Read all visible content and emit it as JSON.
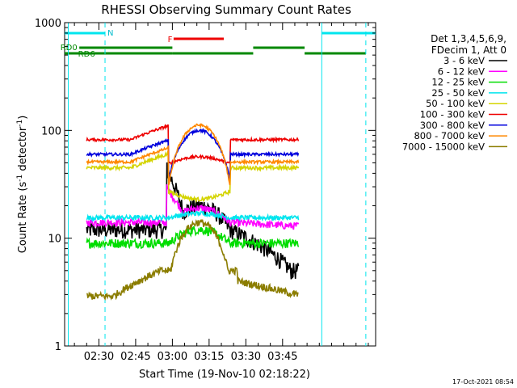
{
  "chart_data": {
    "type": "line",
    "title": "RHESSI Observing Summary Count Rates",
    "xlabel": "Start Time (19-Nov-10 02:18:22)",
    "ylabel_main": "Count Rate (s",
    "ylabel_sup1": "-1",
    "ylabel_mid": " detector",
    "ylabel_sup2": "-1",
    "ylabel_end": ")",
    "footer": "17-Oct-2021 08:54",
    "yscale": "log",
    "ylim": [
      1,
      1000
    ],
    "xlim_minutes": [
      -2,
      125
    ],
    "x_ticks": [
      {
        "t": 12,
        "label": "02:30"
      },
      {
        "t": 27,
        "label": "02:45"
      },
      {
        "t": 42,
        "label": "03:00"
      },
      {
        "t": 57,
        "label": "03:15"
      },
      {
        "t": 72,
        "label": "03:30"
      },
      {
        "t": 87,
        "label": "03:45"
      }
    ],
    "y_ticks": [
      {
        "v": 1,
        "label": "1"
      },
      {
        "v": 10,
        "label": "10"
      },
      {
        "v": 100,
        "label": "100"
      },
      {
        "v": 1000,
        "label": "1000"
      }
    ],
    "legend": {
      "header1": "Det 1,3,4,5,6,9,",
      "header2": "FDecim 1, Att 0",
      "position": "right"
    },
    "series": [
      {
        "name": "3 - 6 keV",
        "color": "#000000",
        "kind": "flat",
        "base": 12,
        "peak": 20,
        "spike": 45,
        "noise": 0.18,
        "tail": 5
      },
      {
        "name": "6 - 12 keV",
        "color": "#ff00ff",
        "kind": "flat",
        "base": 14,
        "peak": 19,
        "spike": 30,
        "noise": 0.08,
        "tail": 13
      },
      {
        "name": "12 - 25 keV",
        "color": "#00dd00",
        "kind": "dome",
        "base": 9,
        "peak": 12,
        "spike": 0,
        "noise": 0.1,
        "tail": 9
      },
      {
        "name": "25 - 50 keV",
        "color": "#00e5ee",
        "kind": "flat",
        "base": 15.5,
        "peak": 17,
        "spike": 0,
        "noise": 0.05,
        "tail": 15.5
      },
      {
        "name": "50 - 100 keV",
        "color": "#d4d400",
        "kind": "rise",
        "base": 45,
        "peak": 23,
        "spike": 0,
        "noise": 0.04,
        "tail": 45
      },
      {
        "name": "100 - 300 keV",
        "color": "#ee0000",
        "kind": "rise",
        "base": 82,
        "peak": 57,
        "spike": 0,
        "noise": 0.03,
        "tail": 82
      },
      {
        "name": "300 - 800 keV",
        "color": "#0000dd",
        "kind": "rise",
        "base": 60,
        "peak": 100,
        "spike": 0,
        "noise": 0.03,
        "tail": 60
      },
      {
        "name": "800 - 7000 keV",
        "color": "#ff8800",
        "kind": "rise",
        "base": 51,
        "peak": 112,
        "spike": 0,
        "noise": 0.03,
        "tail": 51
      },
      {
        "name": "7000 - 15000 keV",
        "color": "#8b7d00",
        "kind": "step",
        "base": 2.9,
        "peak": 14,
        "spike": 0,
        "noise": 0.08,
        "tail": 3
      }
    ],
    "gaps_minutes": [
      [
        -2,
        7
      ],
      [
        93.5,
        125
      ]
    ],
    "saa_minutes": [
      40.5,
      65.5
    ],
    "annotations": {
      "night_label": "N",
      "flare_label": "F",
      "rd0_label": "RD0",
      "rd6_label": "RD6",
      "night_bars": [
        [
          -2,
          14.5
        ],
        [
          103,
          125
        ]
      ],
      "flare_bar": [
        42.5,
        63
      ],
      "rd0_bars": [
        [
          4,
          42
        ],
        [
          75,
          96
        ]
      ],
      "rd6_bars": [
        [
          -2,
          42
        ],
        [
          42,
          75
        ],
        [
          96,
          121
        ]
      ]
    }
  }
}
